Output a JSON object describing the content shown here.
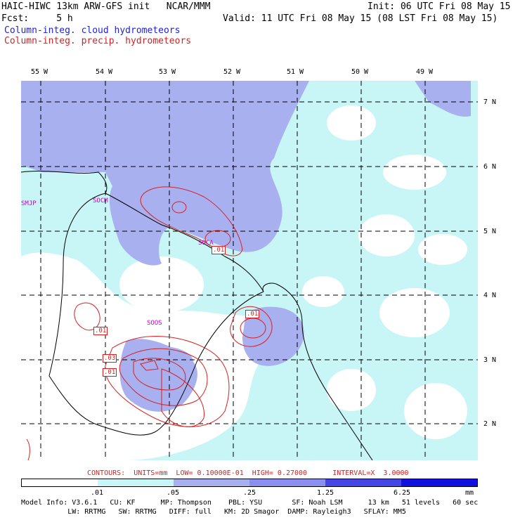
{
  "header": {
    "title_left": "HAIC-HIWC 13km ARW-GFS init   NCAR/MMM",
    "fcst": "Fcst:     5 h",
    "init": "Init: 06 UTC Fri 08 May 15",
    "valid": "Valid: 11 UTC Fri 08 May 15 (08 LST Fri 08 May 15)",
    "field_blue": "Column-integ. cloud hydrometeors",
    "field_red": "Column-integ. precip. hydrometeors"
  },
  "axes": {
    "lon_labels": [
      "55 W",
      "54 W",
      "53 W",
      "52 W",
      "51 W",
      "50 W",
      "49 W"
    ],
    "lat_labels": [
      "7 N",
      "6 N",
      "5 N",
      "4 N",
      "3 N",
      "2 N"
    ]
  },
  "stations": [
    "SMJP",
    "SOCM",
    "SOCA",
    "SOOS"
  ],
  "contour_labels": [
    ".01",
    ".01",
    ".01",
    ".03",
    ".01"
  ],
  "contours_info": "CONTOURS:  UNITS=mm  LOW= 0.10000E-01  HIGH= 0.27000      INTERVAL=X  3.0000",
  "legend": {
    "ticks": [
      ".01",
      ".05",
      ".25",
      "1.25",
      "6.25",
      "mm"
    ],
    "colors": [
      "#ffffff",
      "#c8f5f5",
      "#a8b0f0",
      "#8a8ff0",
      "#4646e6",
      "#1010e0"
    ]
  },
  "footer": {
    "line1": "Model Info: V3.6.1   CU: KF      MP: Thompson    PBL: YSU       SF: Noah LSM      13 km   51 levels   60 sec",
    "line2": "           LW: RRTMG   SW: RRTMG   DIFF: full   KM: 2D Smagor  DAMP: Rayleigh3   SFLAY: MM5"
  }
}
